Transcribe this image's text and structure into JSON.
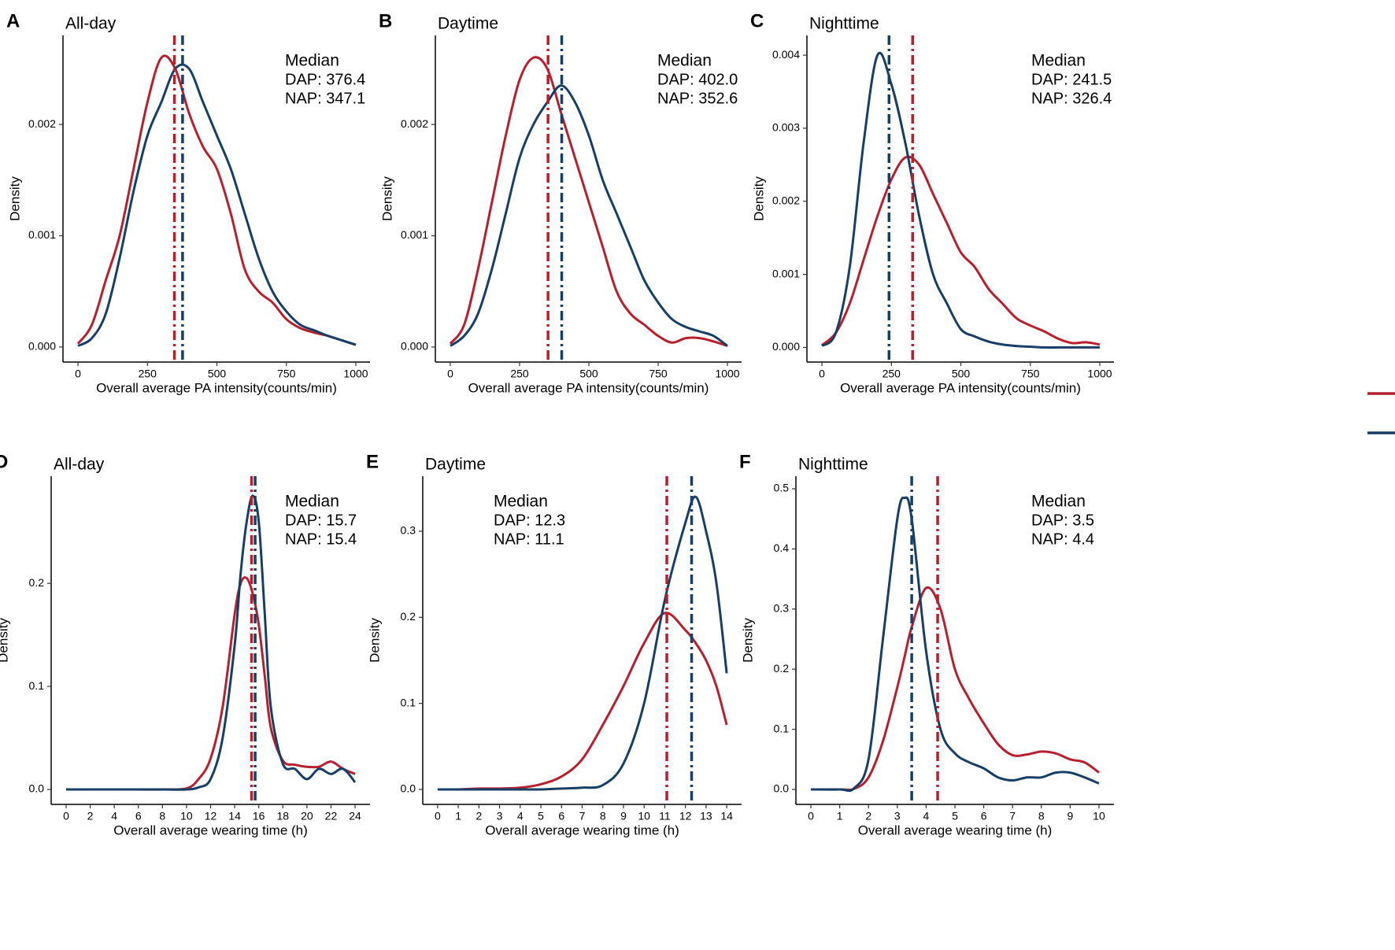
{
  "chart_data": [
    {
      "type": "line",
      "panel": "A",
      "title": "All-day",
      "xlabel": "Overall average PA intensity(counts/min)",
      "ylabel": "Density",
      "annotation": "Median",
      "x": [
        0,
        50,
        100,
        150,
        200,
        250,
        300,
        350,
        400,
        450,
        500,
        550,
        600,
        650,
        700,
        750,
        800,
        850,
        900,
        950,
        1000
      ],
      "series": [
        {
          "name": "NAP",
          "color": "#b51f2e",
          "median": 347.1,
          "median_label": "NAP: 347.1",
          "values": [
            3e-05,
            0.0002,
            0.0006,
            0.001,
            0.0016,
            0.0022,
            0.0026,
            0.0025,
            0.0021,
            0.0018,
            0.0016,
            0.0012,
            0.0007,
            0.0005,
            0.0004,
            0.00025,
            0.00017,
            0.00013,
            0.0001,
            6e-05,
            2e-05
          ]
        },
        {
          "name": "DAP",
          "color": "#173f66",
          "median": 376.4,
          "median_label": "DAP: 376.4",
          "values": [
            1e-05,
            8e-05,
            0.0003,
            0.0008,
            0.0014,
            0.0019,
            0.0022,
            0.0025,
            0.0025,
            0.0022,
            0.0019,
            0.0016,
            0.0012,
            0.0008,
            0.0005,
            0.00032,
            0.0002,
            0.00015,
            0.0001,
            6e-05,
            2e-05
          ]
        }
      ],
      "xlim": [
        -54,
        1051
      ],
      "ylim": [
        -0.000135,
        0.0028
      ],
      "xticks": [
        0,
        250,
        500,
        750,
        1000
      ],
      "yticks": [
        {
          "value": 0,
          "label": "0.000"
        },
        {
          "value": 0.001,
          "label": "0.001"
        },
        {
          "value": 0.002,
          "label": "0.002"
        }
      ]
    },
    {
      "type": "line",
      "panel": "B",
      "title": "Daytime",
      "xlabel": "Overall average PA intensity(counts/min)",
      "ylabel": "Density",
      "annotation": "Median",
      "x": [
        0,
        50,
        100,
        150,
        200,
        250,
        300,
        350,
        400,
        450,
        500,
        550,
        600,
        650,
        700,
        750,
        800,
        850,
        900,
        950,
        1000
      ],
      "series": [
        {
          "name": "NAP",
          "color": "#b51f2e",
          "median": 352.6,
          "median_label": "NAP: 352.6",
          "values": [
            3e-05,
            0.0002,
            0.0007,
            0.0013,
            0.0019,
            0.0024,
            0.0026,
            0.0025,
            0.0021,
            0.0017,
            0.0013,
            0.0009,
            0.0005,
            0.0003,
            0.0002,
            0.0001,
            4e-05,
            8e-05,
            8e-05,
            5e-05,
            1e-05
          ]
        },
        {
          "name": "DAP",
          "color": "#173f66",
          "median": 402.0,
          "median_label": "DAP: 402.0",
          "values": [
            1e-05,
            0.0001,
            0.0003,
            0.0007,
            0.0012,
            0.0017,
            0.002,
            0.0022,
            0.00235,
            0.0022,
            0.0019,
            0.0015,
            0.0012,
            0.0009,
            0.0006,
            0.0004,
            0.00025,
            0.00018,
            0.00014,
            0.0001,
            1e-05
          ]
        }
      ],
      "xlim": [
        -54,
        1051
      ],
      "ylim": [
        -0.000135,
        0.0028
      ],
      "xticks": [
        0,
        250,
        500,
        750,
        1000
      ],
      "yticks": [
        {
          "value": 0,
          "label": "0.000"
        },
        {
          "value": 0.001,
          "label": "0.001"
        },
        {
          "value": 0.002,
          "label": "0.002"
        }
      ]
    },
    {
      "type": "line",
      "panel": "C",
      "title": "Nighttime",
      "xlabel": "Overall average PA intensity(counts/min)",
      "ylabel": "Density",
      "annotation": "Median",
      "x": [
        0,
        50,
        100,
        150,
        200,
        250,
        300,
        350,
        400,
        450,
        500,
        550,
        600,
        650,
        700,
        750,
        800,
        850,
        900,
        950,
        1000
      ],
      "series": [
        {
          "name": "NAP",
          "color": "#b51f2e",
          "median": 326.4,
          "median_label": "NAP: 326.4",
          "values": [
            3e-05,
            0.0002,
            0.0006,
            0.0012,
            0.0018,
            0.0023,
            0.0026,
            0.0025,
            0.0021,
            0.0017,
            0.0013,
            0.0011,
            0.0008,
            0.0006,
            0.0004,
            0.0003,
            0.00022,
            0.00012,
            6e-05,
            7e-05,
            4e-05
          ]
        },
        {
          "name": "DAP",
          "color": "#173f66",
          "median": 241.5,
          "median_label": "DAP: 241.5",
          "values": [
            2e-05,
            0.0002,
            0.0011,
            0.0028,
            0.004,
            0.0036,
            0.0028,
            0.0018,
            0.001,
            0.0006,
            0.00025,
            0.00015,
            8e-05,
            4e-05,
            2e-05,
            1e-05,
            0,
            0,
            0,
            0,
            0
          ]
        }
      ],
      "xlim": [
        -54,
        1051
      ],
      "ylim": [
        -0.0002,
        0.00427
      ],
      "xticks": [
        0,
        250,
        500,
        750,
        1000
      ],
      "yticks": [
        {
          "value": 0,
          "label": "0.000"
        },
        {
          "value": 0.001,
          "label": "0.001"
        },
        {
          "value": 0.002,
          "label": "0.002"
        },
        {
          "value": 0.003,
          "label": "0.003"
        },
        {
          "value": 0.004,
          "label": "0.004"
        }
      ]
    },
    {
      "type": "line",
      "panel": "D",
      "title": "All-day",
      "xlabel": "Overall average wearing time (h)",
      "ylabel": "Density",
      "annotation": "Median",
      "x": [
        0,
        2,
        4,
        6,
        8,
        10,
        11,
        12,
        13,
        14,
        14.5,
        15,
        15.5,
        16,
        16.5,
        17,
        18,
        19,
        20,
        21,
        22,
        23,
        24
      ],
      "series": [
        {
          "name": "NAP",
          "color": "#b51f2e",
          "median": 15.4,
          "median_label": "NAP: 15.4",
          "values": [
            0,
            0,
            0,
            0,
            0,
            0.001,
            0.01,
            0.03,
            0.08,
            0.17,
            0.2,
            0.205,
            0.19,
            0.16,
            0.11,
            0.06,
            0.028,
            0.024,
            0.022,
            0.022,
            0.027,
            0.02,
            0.015
          ]
        },
        {
          "name": "DAP",
          "color": "#173f66",
          "median": 15.7,
          "median_label": "DAP: 15.7",
          "values": [
            0,
            0,
            0,
            0,
            0,
            0,
            0.002,
            0.01,
            0.05,
            0.14,
            0.21,
            0.26,
            0.285,
            0.26,
            0.17,
            0.08,
            0.025,
            0.02,
            0.01,
            0.02,
            0.015,
            0.02,
            0.007
          ]
        }
      ],
      "xlim": [
        -1.24,
        25.24
      ],
      "ylim": [
        -0.0145,
        0.304
      ],
      "xticks": [
        0,
        2,
        4,
        6,
        8,
        10,
        12,
        14,
        16,
        18,
        20,
        22,
        24
      ],
      "yticks": [
        {
          "value": 0,
          "label": "0.0"
        },
        {
          "value": 0.1,
          "label": "0.1"
        },
        {
          "value": 0.2,
          "label": "0.2"
        }
      ]
    },
    {
      "type": "line",
      "panel": "E",
      "title": "Daytime",
      "xlabel": "Overall average wearing time (h)",
      "ylabel": "Density",
      "annotation": "Median",
      "x": [
        0,
        1,
        2,
        3,
        4,
        5,
        6,
        7,
        8,
        9,
        10,
        11,
        12,
        12.5,
        13,
        13.5,
        14
      ],
      "series": [
        {
          "name": "NAP",
          "color": "#b51f2e",
          "median": 11.1,
          "median_label": "NAP: 11.1",
          "values": [
            0,
            0,
            0.001,
            0.001,
            0.002,
            0.006,
            0.015,
            0.035,
            0.075,
            0.12,
            0.17,
            0.205,
            0.185,
            0.17,
            0.15,
            0.12,
            0.075
          ]
        },
        {
          "name": "DAP",
          "color": "#173f66",
          "median": 12.3,
          "median_label": "DAP: 12.3",
          "values": [
            0,
            0,
            0,
            0,
            0,
            0,
            0.001,
            0.002,
            0.005,
            0.03,
            0.1,
            0.22,
            0.31,
            0.34,
            0.3,
            0.24,
            0.135
          ]
        }
      ],
      "xlim": [
        -0.72,
        14.72
      ],
      "ylim": [
        -0.0174,
        0.364
      ],
      "xticks": [
        0,
        1,
        2,
        3,
        4,
        5,
        6,
        7,
        8,
        9,
        10,
        11,
        12,
        13,
        14
      ],
      "yticks": [
        {
          "value": 0,
          "label": "0.0"
        },
        {
          "value": 0.1,
          "label": "0.1"
        },
        {
          "value": 0.2,
          "label": "0.2"
        },
        {
          "value": 0.3,
          "label": "0.3"
        }
      ]
    },
    {
      "type": "line",
      "panel": "F",
      "title": "Nighttime",
      "xlabel": "Overall average wearing time (h)",
      "ylabel": "Density",
      "annotation": "Median",
      "x": [
        0,
        1,
        1.5,
        2,
        2.5,
        3,
        3.25,
        3.5,
        4,
        4.5,
        5,
        5.5,
        6,
        6.5,
        7,
        7.5,
        8,
        8.5,
        9,
        9.5,
        10
      ],
      "series": [
        {
          "name": "NAP",
          "color": "#b51f2e",
          "median": 4.4,
          "median_label": "NAP: 4.4",
          "values": [
            0,
            0,
            0.001,
            0.02,
            0.08,
            0.17,
            0.22,
            0.27,
            0.335,
            0.3,
            0.2,
            0.15,
            0.11,
            0.075,
            0.057,
            0.058,
            0.063,
            0.06,
            0.05,
            0.045,
            0.028
          ]
        },
        {
          "name": "DAP",
          "color": "#173f66",
          "median": 3.5,
          "median_label": "DAP: 3.5",
          "values": [
            0,
            0,
            0.002,
            0.05,
            0.25,
            0.45,
            0.485,
            0.45,
            0.23,
            0.1,
            0.06,
            0.045,
            0.035,
            0.02,
            0.015,
            0.02,
            0.02,
            0.028,
            0.028,
            0.02,
            0.01
          ]
        }
      ],
      "xlim": [
        -0.52,
        10.52
      ],
      "ylim": [
        -0.0249,
        0.521
      ],
      "xticks": [
        0,
        1,
        2,
        3,
        4,
        5,
        6,
        7,
        8,
        9,
        10
      ],
      "yticks": [
        {
          "value": 0,
          "label": "0.0"
        },
        {
          "value": 0.1,
          "label": "0.1"
        },
        {
          "value": 0.2,
          "label": "0.2"
        },
        {
          "value": 0.3,
          "label": "0.3"
        },
        {
          "value": 0.4,
          "label": "0.4"
        },
        {
          "value": 0.5,
          "label": "0.5"
        }
      ]
    }
  ]
}
